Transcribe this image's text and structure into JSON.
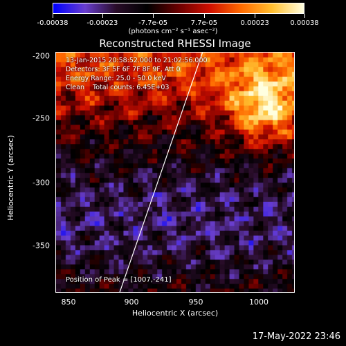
{
  "colorbar": {
    "ticks": [
      "-0.00038",
      "-0.00023",
      "-7.7e-05",
      "7.7e-05",
      "0.00023",
      "0.00038"
    ],
    "units": "(photons cm⁻² s⁻¹ asec⁻²)"
  },
  "title": "Reconstructed RHESSI Image",
  "info": {
    "line1": "13-Jan-2015 20:58:52.000 to 21:02:56.000",
    "line2": "Detectors: 3F 5F 6F 7F 8F 9F, Att 0",
    "line3": "Energy Range: 25.0 - 50.0 keV",
    "line4": "Clean    Total counts: 6.45E+03"
  },
  "peak_label": "Position of Peak = [1007,-241]",
  "axes": {
    "xlabel": "Heliocentric X (arcsec)",
    "ylabel": "Heliocentric Y (arcsec)",
    "xticks": [
      "850",
      "900",
      "950",
      "1000"
    ],
    "yticks": [
      "-200",
      "-250",
      "-300",
      "-350"
    ]
  },
  "timestamp": "17-May-2022 23:46",
  "chart_data": {
    "type": "heatmap",
    "title": "Reconstructed RHESSI Image",
    "xlabel": "Heliocentric X (arcsec)",
    "ylabel": "Heliocentric Y (arcsec)",
    "xlim": [
      837,
      1030
    ],
    "ylim": [
      -390,
      -196
    ],
    "colorbar_range": [
      -0.00038,
      0.00038
    ],
    "peak": [
      1007,
      -241
    ],
    "limb_line": [
      [
        888,
        -390
      ],
      [
        955,
        -196
      ]
    ],
    "colormap": [
      "#0000ff",
      "#6a3fd0",
      "#2a0d2a",
      "#000000",
      "#6b0000",
      "#d01000",
      "#ff6a00",
      "#ffc030",
      "#ffffe0"
    ]
  }
}
